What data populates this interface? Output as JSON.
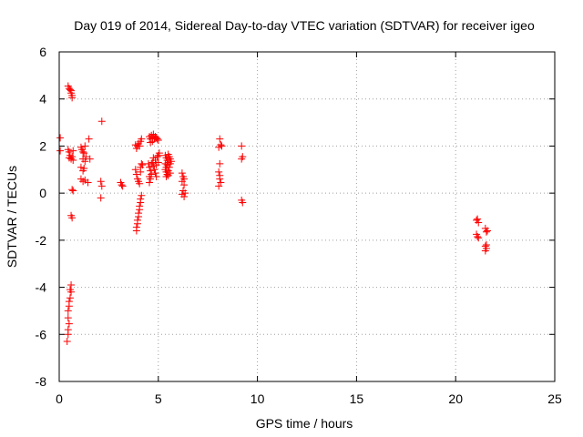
{
  "chart_data": {
    "type": "scatter",
    "title": "Day 019 of 2014, Sidereal Day-to-day VTEC variation (SDTVAR) for receiver igeo",
    "xlabel": "GPS time / hours",
    "ylabel": "SDTVAR / TECUs",
    "xlim": [
      0,
      25
    ],
    "ylim": [
      -8,
      6
    ],
    "xticks": [
      0,
      5,
      10,
      15,
      20,
      25
    ],
    "yticks": [
      -8,
      -6,
      -4,
      -2,
      0,
      2,
      4,
      6
    ],
    "grid": true,
    "marker": "+",
    "marker_color": "#ff0000",
    "series": [
      {
        "name": "SDTVAR",
        "points": [
          [
            0.05,
            2.35
          ],
          [
            0.05,
            1.8
          ],
          [
            0.45,
            4.55
          ],
          [
            0.5,
            4.45
          ],
          [
            0.55,
            4.4
          ],
          [
            0.6,
            4.35
          ],
          [
            0.6,
            4.25
          ],
          [
            0.65,
            4.15
          ],
          [
            0.65,
            4.05
          ],
          [
            0.45,
            1.85
          ],
          [
            0.5,
            1.75
          ],
          [
            0.55,
            1.6
          ],
          [
            0.5,
            1.5
          ],
          [
            0.6,
            1.45
          ],
          [
            0.65,
            1.55
          ],
          [
            0.7,
            1.8
          ],
          [
            0.7,
            1.4
          ],
          [
            0.65,
            0.15
          ],
          [
            0.7,
            0.1
          ],
          [
            0.6,
            -0.95
          ],
          [
            0.65,
            -1.05
          ],
          [
            0.6,
            -3.9
          ],
          [
            0.55,
            -4.1
          ],
          [
            0.6,
            -4.2
          ],
          [
            0.55,
            -4.45
          ],
          [
            0.5,
            -4.6
          ],
          [
            0.5,
            -4.8
          ],
          [
            0.45,
            -5.0
          ],
          [
            0.45,
            -5.3
          ],
          [
            0.5,
            -5.55
          ],
          [
            0.45,
            -5.8
          ],
          [
            0.45,
            -6.0
          ],
          [
            0.4,
            -6.3
          ],
          [
            1.1,
            1.95
          ],
          [
            1.15,
            1.85
          ],
          [
            1.2,
            1.75
          ],
          [
            1.25,
            1.7
          ],
          [
            1.3,
            2.0
          ],
          [
            1.35,
            1.55
          ],
          [
            1.2,
            1.45
          ],
          [
            1.3,
            1.35
          ],
          [
            1.1,
            1.1
          ],
          [
            1.2,
            0.95
          ],
          [
            1.25,
            1.05
          ],
          [
            1.1,
            0.6
          ],
          [
            1.2,
            0.5
          ],
          [
            1.3,
            0.55
          ],
          [
            1.45,
            0.45
          ],
          [
            1.5,
            2.3
          ],
          [
            1.55,
            1.45
          ],
          [
            2.15,
            3.05
          ],
          [
            2.1,
            0.5
          ],
          [
            2.15,
            0.3
          ],
          [
            2.1,
            -0.2
          ],
          [
            3.1,
            0.45
          ],
          [
            3.15,
            0.35
          ],
          [
            3.2,
            0.3
          ],
          [
            3.85,
            2.05
          ],
          [
            3.9,
            1.9
          ],
          [
            4.0,
            2.1
          ],
          [
            4.05,
            2.0
          ],
          [
            4.1,
            2.2
          ],
          [
            4.15,
            2.3
          ],
          [
            3.95,
            2.0
          ],
          [
            3.9,
            0.8
          ],
          [
            3.95,
            0.6
          ],
          [
            4.0,
            0.5
          ],
          [
            4.05,
            0.4
          ],
          [
            4.1,
            0.9
          ],
          [
            4.1,
            1.1
          ],
          [
            4.15,
            1.25
          ],
          [
            4.2,
            1.2
          ],
          [
            3.85,
            1.0
          ],
          [
            3.9,
            -1.6
          ],
          [
            3.9,
            -1.45
          ],
          [
            3.95,
            -1.3
          ],
          [
            3.95,
            -1.15
          ],
          [
            4.0,
            -1.0
          ],
          [
            4.0,
            -0.85
          ],
          [
            4.05,
            -0.7
          ],
          [
            4.05,
            -0.55
          ],
          [
            4.1,
            -0.4
          ],
          [
            4.1,
            -0.25
          ],
          [
            4.15,
            -0.1
          ],
          [
            4.55,
            2.4
          ],
          [
            4.6,
            2.3
          ],
          [
            4.65,
            2.45
          ],
          [
            4.7,
            2.35
          ],
          [
            4.75,
            2.5
          ],
          [
            4.8,
            2.3
          ],
          [
            4.85,
            2.4
          ],
          [
            4.9,
            2.35
          ],
          [
            4.95,
            2.3
          ],
          [
            5.0,
            2.25
          ],
          [
            4.7,
            2.2
          ],
          [
            4.6,
            2.15
          ],
          [
            4.5,
            1.25
          ],
          [
            4.55,
            1.1
          ],
          [
            4.6,
            0.95
          ],
          [
            4.65,
            0.8
          ],
          [
            4.6,
            0.6
          ],
          [
            4.55,
            0.45
          ],
          [
            4.7,
            1.3
          ],
          [
            4.75,
            1.15
          ],
          [
            4.8,
            1.0
          ],
          [
            4.85,
            1.4
          ],
          [
            4.9,
            1.2
          ],
          [
            4.95,
            1.55
          ],
          [
            5.0,
            1.6
          ],
          [
            5.05,
            1.7
          ],
          [
            4.85,
            0.85
          ],
          [
            4.9,
            0.7
          ],
          [
            5.0,
            1.3
          ],
          [
            4.75,
            1.5
          ],
          [
            4.65,
            1.25
          ],
          [
            4.55,
            0.7
          ],
          [
            5.35,
            1.6
          ],
          [
            5.4,
            1.5
          ],
          [
            5.45,
            1.4
          ],
          [
            5.5,
            1.3
          ],
          [
            5.45,
            1.2
          ],
          [
            5.4,
            1.1
          ],
          [
            5.35,
            1.0
          ],
          [
            5.4,
            0.9
          ],
          [
            5.45,
            0.8
          ],
          [
            5.4,
            0.7
          ],
          [
            5.5,
            0.75
          ],
          [
            5.55,
            1.55
          ],
          [
            5.6,
            1.45
          ],
          [
            5.6,
            1.25
          ],
          [
            5.55,
            1.1
          ],
          [
            5.5,
            0.95
          ],
          [
            5.6,
            0.85
          ],
          [
            5.65,
            1.35
          ],
          [
            5.5,
            1.65
          ],
          [
            5.35,
            1.25
          ],
          [
            6.2,
            0.85
          ],
          [
            6.25,
            0.7
          ],
          [
            6.3,
            0.6
          ],
          [
            6.2,
            0.5
          ],
          [
            6.3,
            0.35
          ],
          [
            6.25,
            0.1
          ],
          [
            6.2,
            -0.05
          ],
          [
            6.3,
            -0.15
          ],
          [
            6.35,
            0.0
          ],
          [
            8.1,
            2.3
          ],
          [
            8.15,
            2.05
          ],
          [
            8.2,
            2.0
          ],
          [
            8.05,
            1.95
          ],
          [
            8.1,
            1.25
          ],
          [
            8.05,
            0.9
          ],
          [
            8.1,
            0.75
          ],
          [
            8.1,
            0.6
          ],
          [
            8.15,
            0.45
          ],
          [
            8.05,
            0.3
          ],
          [
            9.2,
            2.0
          ],
          [
            9.25,
            1.55
          ],
          [
            9.2,
            1.45
          ],
          [
            9.2,
            -0.3
          ],
          [
            9.25,
            -0.4
          ],
          [
            21.05,
            -1.15
          ],
          [
            21.1,
            -1.1
          ],
          [
            21.15,
            -1.25
          ],
          [
            21.05,
            -1.75
          ],
          [
            21.1,
            -1.85
          ],
          [
            21.15,
            -1.9
          ],
          [
            21.5,
            -1.5
          ],
          [
            21.55,
            -1.65
          ],
          [
            21.6,
            -1.6
          ],
          [
            21.5,
            -2.25
          ],
          [
            21.55,
            -2.35
          ],
          [
            21.5,
            -2.45
          ],
          [
            21.55,
            -2.2
          ]
        ]
      }
    ]
  }
}
